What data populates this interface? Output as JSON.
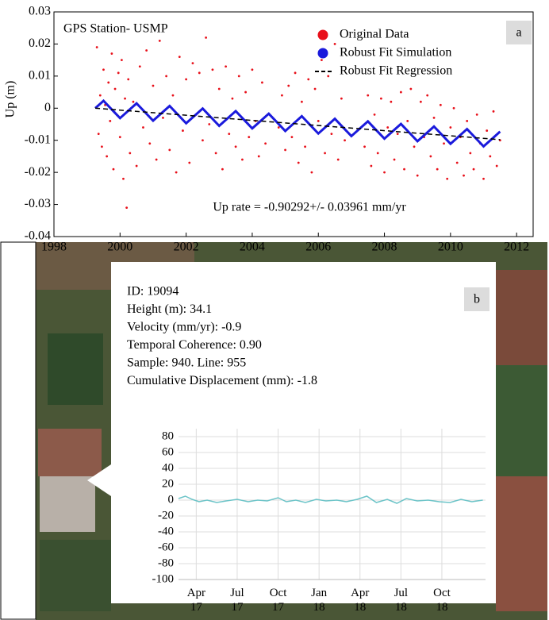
{
  "chart_data": [
    {
      "type": "scatter",
      "title": "GPS Station- USMP",
      "panel_label": "a",
      "y_label": "Up (m)",
      "annotation": "Up rate = -0.90292+/- 0.03961 mm/yr",
      "xlim": [
        1998,
        2012.5
      ],
      "ylim": [
        -0.04,
        0.03
      ],
      "xticks": [
        1998,
        2000,
        2002,
        2004,
        2006,
        2008,
        2010,
        2012
      ],
      "yticks": [
        0.03,
        0.02,
        0.01,
        0,
        -0.01,
        -0.02,
        -0.03,
        -0.04
      ],
      "series": [
        {
          "name": "Original Data",
          "color": "#e8101a",
          "mode": "markers",
          "x": [
            1999.3,
            1999.35,
            1999.4,
            1999.45,
            1999.5,
            1999.55,
            1999.6,
            1999.65,
            1999.7,
            1999.75,
            1999.8,
            1999.85,
            1999.9,
            1999.95,
            2000.0,
            2000.05,
            2000.1,
            2000.15,
            2000.2,
            2000.25,
            2000.3,
            2000.4,
            2000.5,
            2000.6,
            2000.7,
            2000.8,
            2000.9,
            2001.0,
            2001.1,
            2001.2,
            2001.3,
            2001.4,
            2001.5,
            2001.6,
            2001.7,
            2001.8,
            2001.9,
            2002.0,
            2002.1,
            2002.2,
            2002.3,
            2002.4,
            2002.5,
            2002.6,
            2002.7,
            2002.8,
            2002.9,
            2003.0,
            2003.1,
            2003.2,
            2003.3,
            2003.4,
            2003.5,
            2003.6,
            2003.7,
            2003.8,
            2003.9,
            2004.0,
            2004.1,
            2004.2,
            2004.3,
            2004.4,
            2004.8,
            2004.9,
            2005.0,
            2005.1,
            2005.2,
            2005.3,
            2005.4,
            2005.5,
            2005.6,
            2005.7,
            2005.8,
            2005.9,
            2006.0,
            2006.1,
            2006.2,
            2006.3,
            2006.4,
            2006.5,
            2006.6,
            2006.7,
            2006.8,
            2007.4,
            2007.5,
            2007.6,
            2007.7,
            2007.8,
            2007.9,
            2008.0,
            2008.1,
            2008.2,
            2008.3,
            2008.4,
            2008.5,
            2008.6,
            2008.7,
            2008.8,
            2008.9,
            2009.0,
            2009.1,
            2009.2,
            2009.3,
            2009.4,
            2009.5,
            2009.6,
            2009.7,
            2009.8,
            2009.9,
            2010.0,
            2010.1,
            2010.2,
            2010.3,
            2010.4,
            2010.5,
            2010.6,
            2010.7,
            2010.8,
            2010.9,
            2011.0,
            2011.1,
            2011.2,
            2011.3,
            2011.4,
            2011.5
          ],
          "values": [
            0.019,
            -0.008,
            0.004,
            -0.012,
            0.012,
            0.001,
            -0.015,
            0.008,
            -0.004,
            0.017,
            -0.019,
            0.006,
            -0.002,
            0.011,
            -0.009,
            0.015,
            -0.022,
            0.003,
            -0.031,
            0.009,
            -0.014,
            0.002,
            -0.018,
            0.013,
            -0.006,
            0.018,
            -0.011,
            0.007,
            -0.016,
            0.021,
            -0.003,
            0.01,
            -0.013,
            0.004,
            -0.02,
            0.016,
            -0.007,
            0.009,
            -0.017,
            0.014,
            -0.002,
            0.011,
            -0.01,
            0.022,
            -0.005,
            0.012,
            -0.014,
            0.006,
            -0.019,
            0.013,
            -0.008,
            0.003,
            -0.012,
            0.01,
            -0.016,
            0.005,
            -0.009,
            0.012,
            -0.004,
            -0.015,
            0.008,
            -0.011,
            -0.006,
            0.004,
            -0.013,
            0.007,
            -0.009,
            0.011,
            -0.017,
            0.002,
            -0.012,
            0.009,
            -0.02,
            0.006,
            -0.004,
            0.015,
            -0.014,
            0.01,
            -0.008,
            0.02,
            -0.016,
            0.003,
            -0.01,
            -0.012,
            0.004,
            -0.018,
            -0.002,
            -0.014,
            0.003,
            -0.02,
            -0.006,
            0.002,
            -0.016,
            -0.008,
            0.005,
            -0.019,
            -0.004,
            0.006,
            -0.012,
            -0.021,
            0.002,
            -0.009,
            0.004,
            -0.015,
            -0.003,
            -0.019,
            0.001,
            -0.011,
            -0.022,
            -0.006,
            0.0,
            -0.017,
            -0.009,
            -0.021,
            -0.004,
            -0.014,
            -0.019,
            -0.002,
            -0.011,
            -0.022,
            -0.007,
            -0.015,
            -0.001,
            -0.018,
            -0.01
          ]
        },
        {
          "name": "Robust Fit Simulation",
          "color": "#1a1adc",
          "mode": "line",
          "x": [
            1999.25,
            1999.5,
            1999.75,
            2000.0,
            2000.25,
            2000.5,
            2000.75,
            2001.0,
            2001.25,
            2001.5,
            2001.75,
            2002.0,
            2002.25,
            2002.5,
            2002.75,
            2003.0,
            2003.25,
            2003.5,
            2003.75,
            2004.0,
            2004.25,
            2004.5,
            2004.75,
            2005.0,
            2005.25,
            2005.5,
            2005.75,
            2006.0,
            2006.25,
            2006.5,
            2006.75,
            2007.0,
            2007.25,
            2007.5,
            2007.75,
            2008.0,
            2008.25,
            2008.5,
            2008.75,
            2009.0,
            2009.25,
            2009.5,
            2009.75,
            2010.0,
            2010.25,
            2010.5,
            2010.75,
            2011.0,
            2011.25,
            2011.5
          ],
          "values": [
            0.0,
            0.0023,
            -0.0004,
            -0.0031,
            -0.0008,
            0.0015,
            -0.0012,
            -0.0039,
            -0.0016,
            0.0007,
            -0.002,
            -0.0047,
            -0.0024,
            -0.0001,
            -0.0028,
            -0.0055,
            -0.0032,
            -0.0009,
            -0.0036,
            -0.0063,
            -0.004,
            -0.0017,
            -0.0044,
            -0.0071,
            -0.0048,
            -0.0025,
            -0.0052,
            -0.0079,
            -0.0056,
            -0.0033,
            -0.006,
            -0.0087,
            -0.0064,
            -0.0041,
            -0.0068,
            -0.0095,
            -0.0072,
            -0.0049,
            -0.0076,
            -0.0103,
            -0.008,
            -0.0057,
            -0.0084,
            -0.0111,
            -0.0088,
            -0.0065,
            -0.0092,
            -0.0119,
            -0.0096,
            -0.0073
          ]
        },
        {
          "name": "Robust Fit Regression",
          "color": "#000000",
          "mode": "dashed",
          "x": [
            1999.25,
            2011.5
          ],
          "values": [
            0.0,
            -0.0098
          ]
        }
      ]
    },
    {
      "type": "line",
      "panel_label": "b",
      "info": [
        "ID: 19094",
        "Height (m): 34.1",
        "Velocity (mm/yr): -0.9",
        "Temporal Coherence: 0.90",
        "Sample: 940. Line: 955",
        "Cumulative Displacement (mm): -1.8"
      ],
      "xlim": [
        1.7,
        24.2
      ],
      "ylim": [
        -100,
        90
      ],
      "color": "#6cc4c8",
      "xticks": [
        {
          "value": 3,
          "label": "Apr 17"
        },
        {
          "value": 6,
          "label": "Jul 17"
        },
        {
          "value": 9,
          "label": "Oct 17"
        },
        {
          "value": 12,
          "label": "Jan 18"
        },
        {
          "value": 15,
          "label": "Apr 18"
        },
        {
          "value": 18,
          "label": "Jul 18"
        },
        {
          "value": 21,
          "label": "Oct 18"
        }
      ],
      "yticks": [
        80,
        60,
        40,
        20,
        0,
        -20,
        -40,
        -60,
        -80,
        -100
      ],
      "x": [
        1.7,
        2.2,
        2.7,
        3.2,
        3.8,
        4.5,
        5.2,
        6.0,
        6.8,
        7.5,
        8.2,
        9.0,
        9.6,
        10.3,
        11.0,
        11.8,
        12.5,
        13.3,
        14.0,
        14.8,
        15.5,
        16.2,
        17.0,
        17.7,
        18.4,
        19.2,
        20.0,
        20.8,
        21.6,
        22.4,
        23.2,
        24.0
      ],
      "values": [
        2,
        5,
        1,
        -2,
        0,
        -3,
        -1,
        1,
        -2,
        0,
        -1,
        3,
        -2,
        0,
        -3,
        1,
        -1,
        0,
        -2,
        1,
        5,
        -3,
        1,
        -4,
        2,
        -1,
        0,
        -2,
        -3,
        1,
        -2,
        0
      ]
    }
  ]
}
